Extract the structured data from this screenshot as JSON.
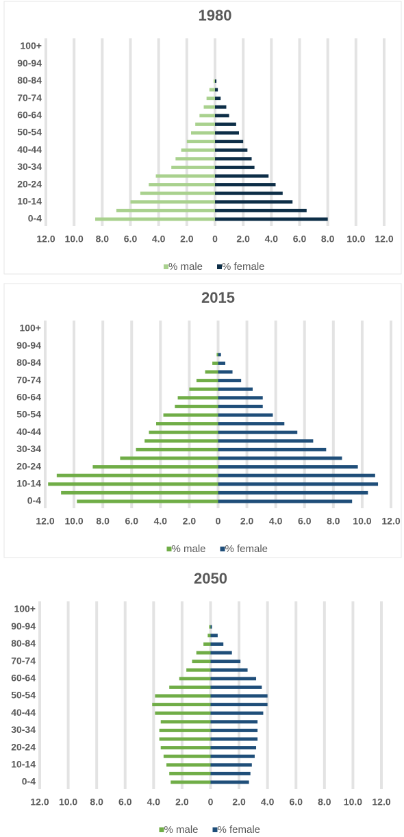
{
  "chart_data": [
    {
      "type": "bar",
      "orientation": "horizontal",
      "title": "1980",
      "categories": [
        "0-4",
        null,
        "10-14",
        null,
        "20-24",
        null,
        "30-34",
        null,
        "40-44",
        null,
        "50-54",
        null,
        "60-64",
        null,
        "70-74",
        null,
        "80-84",
        null,
        "90-94",
        null,
        "100+"
      ],
      "series": [
        {
          "name": "% male",
          "color": "#a9d18e",
          "values": [
            -8.5,
            -7.0,
            -6.0,
            -5.3,
            -4.7,
            -4.2,
            -3.1,
            -2.8,
            -2.4,
            -2.0,
            -1.7,
            -1.4,
            -1.1,
            -0.8,
            -0.6,
            -0.4,
            -0.1,
            0,
            0,
            0,
            0
          ]
        },
        {
          "name": "% female",
          "color": "#0d2e47",
          "values": [
            8.0,
            6.5,
            5.5,
            4.8,
            4.3,
            3.8,
            2.8,
            2.6,
            2.3,
            2.0,
            1.7,
            1.5,
            1.0,
            0.8,
            0.4,
            0.2,
            0.1,
            0,
            0,
            0,
            0
          ]
        }
      ],
      "xlim": [
        -12,
        12
      ],
      "xticks": [
        {
          "value": -12,
          "label": "12.0"
        },
        {
          "value": -10,
          "label": "10.0"
        },
        {
          "value": -8,
          "label": "8.0"
        },
        {
          "value": -6,
          "label": "6.0"
        },
        {
          "value": -4,
          "label": "4.0"
        },
        {
          "value": -2,
          "label": "2.0"
        },
        0,
        {
          "value": 2,
          "label": "2.0"
        },
        {
          "value": 4,
          "label": "4.0"
        },
        {
          "value": 6,
          "label": "6.0"
        },
        {
          "value": 8,
          "label": "8.0"
        },
        {
          "value": 10,
          "label": "10.0"
        },
        {
          "value": 12,
          "label": "12.0"
        }
      ],
      "grid": true,
      "legend": "bottom"
    },
    {
      "type": "bar",
      "orientation": "horizontal",
      "title": "2015",
      "categories": [
        "0-4",
        null,
        "10-14",
        null,
        "20-24",
        null,
        "30-34",
        null,
        "40-44",
        null,
        "50-54",
        null,
        "60-64",
        null,
        "70-74",
        null,
        "80-84",
        null,
        "90-94",
        null,
        "100+"
      ],
      "series": [
        {
          "name": "% male",
          "color": "#70ad47",
          "values": [
            -9.8,
            -10.9,
            -11.8,
            -11.2,
            -8.7,
            -6.8,
            -5.7,
            -5.1,
            -4.8,
            -4.3,
            -3.8,
            -3.0,
            -2.8,
            -2.0,
            -1.5,
            -0.9,
            -0.4,
            -0.1,
            0,
            0,
            0
          ]
        },
        {
          "name": "% female",
          "color": "#1f4e79",
          "values": [
            9.3,
            10.4,
            11.1,
            10.9,
            9.7,
            8.6,
            7.5,
            6.6,
            5.5,
            4.6,
            3.8,
            3.1,
            3.1,
            2.4,
            1.6,
            1.0,
            0.5,
            0.2,
            0,
            0,
            0
          ]
        }
      ],
      "xlim": [
        -12,
        12
      ],
      "xticks": [
        {
          "value": -12,
          "label": "12.0"
        },
        {
          "value": -10,
          "label": "10.0"
        },
        {
          "value": -8,
          "label": "8.0"
        },
        {
          "value": -6,
          "label": "6.0"
        },
        {
          "value": -4,
          "label": "4.0"
        },
        {
          "value": -2,
          "label": "2.0"
        },
        0,
        {
          "value": 2,
          "label": "2.0"
        },
        {
          "value": 4,
          "label": "4.0"
        },
        {
          "value": 6,
          "label": "6.0"
        },
        {
          "value": 8,
          "label": "8.0"
        },
        {
          "value": 10,
          "label": "10.0"
        },
        {
          "value": 12,
          "label": "12.0"
        }
      ],
      "grid": true,
      "legend": "bottom"
    },
    {
      "type": "bar",
      "orientation": "horizontal",
      "title": "2050",
      "categories": [
        "0-4",
        null,
        "10-14",
        null,
        "20-24",
        null,
        "30-34",
        null,
        "40-44",
        null,
        "50-54",
        null,
        "60-64",
        null,
        "70-74",
        null,
        "80-84",
        null,
        "90-94",
        null,
        "100+"
      ],
      "series": [
        {
          "name": "% male",
          "color": "#70ad47",
          "values": [
            -2.8,
            -2.9,
            -3.1,
            -3.3,
            -3.5,
            -3.6,
            -3.6,
            -3.5,
            -3.9,
            -4.1,
            -3.9,
            -2.9,
            -2.2,
            -1.7,
            -1.3,
            -1.0,
            -0.5,
            -0.2,
            -0.1,
            0,
            0
          ]
        },
        {
          "name": "% female",
          "color": "#1f4e79",
          "values": [
            2.7,
            2.8,
            2.9,
            3.1,
            3.2,
            3.3,
            3.3,
            3.3,
            3.7,
            4.0,
            4.0,
            3.6,
            3.2,
            2.6,
            2.1,
            1.5,
            0.9,
            0.5,
            0.1,
            0,
            0
          ]
        }
      ],
      "xlim": [
        -12,
        12
      ],
      "xticks": [
        {
          "value": -12,
          "label": "12.0"
        },
        {
          "value": -10,
          "label": "10.0"
        },
        {
          "value": -8,
          "label": "8.0"
        },
        {
          "value": -6,
          "label": "6.0"
        },
        {
          "value": -4,
          "label": "4.0"
        },
        {
          "value": -2,
          "label": "2.0"
        },
        0,
        {
          "value": 2,
          "label": "2.0"
        },
        {
          "value": 4,
          "label": "4.0"
        },
        {
          "value": 6,
          "label": "6.0"
        },
        {
          "value": 8,
          "label": "8.0"
        },
        {
          "value": 10,
          "label": "10.0"
        },
        {
          "value": 12,
          "label": "12.0"
        }
      ],
      "grid": true,
      "legend": "bottom"
    }
  ]
}
